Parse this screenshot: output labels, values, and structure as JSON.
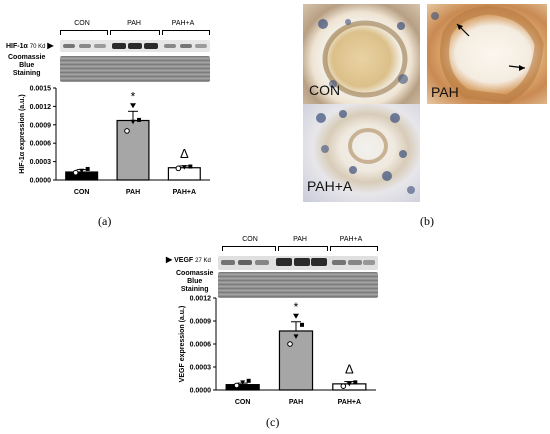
{
  "panel_a": {
    "letter": "(a)",
    "groups": [
      "CON",
      "PAH",
      "PAH+A"
    ],
    "blot_label_main": "HIF-1α",
    "blot_label_kd": "70 Kd",
    "stain_label": [
      "Coomassie",
      "Blue",
      "Staining"
    ],
    "significance": "*",
    "delta": "Δ"
  },
  "panel_b": {
    "letter": "(b)",
    "labels": [
      "CON",
      "PAH",
      "PAH+A"
    ]
  },
  "panel_c": {
    "letter": "(c)",
    "groups": [
      "CON",
      "PAH",
      "PAH+A"
    ],
    "blot_label_main": "VEGF",
    "blot_label_kd": "27 Kd",
    "stain_label": [
      "Coomassie",
      "Blue",
      "Staining"
    ],
    "significance": "*",
    "delta": "Δ"
  },
  "chart_data": [
    {
      "type": "bar",
      "categories": [
        "CON",
        "PAH",
        "PAH+A"
      ],
      "values": [
        0.00013,
        0.00097,
        0.0002
      ],
      "errors": [
        4e-05,
        0.00015,
        3e-05
      ],
      "points": [
        [
          0.00012,
          0.00015,
          0.00018
        ],
        [
          0.0008,
          0.00095,
          0.00098
        ],
        [
          0.00019,
          0.00021,
          0.00022
        ]
      ],
      "bar_colors": [
        "#000000",
        "#a6a6a6",
        "#ffffff"
      ],
      "ylabel": "HIF-1α expression (a.u.)",
      "ylim": [
        0,
        0.0015
      ],
      "yticks": [
        "0.0000",
        "0.0003",
        "0.0006",
        "0.0009",
        "0.0012",
        "0.0015"
      ]
    },
    {
      "type": "bar",
      "categories": [
        "CON",
        "PAH",
        "PAH+A"
      ],
      "values": [
        7e-05,
        0.00077,
        8e-05
      ],
      "errors": [
        2e-05,
        0.00012,
        3e-05
      ],
      "points": [
        [
          6e-05,
          0.0001,
          0.00012
        ],
        [
          0.0006,
          0.0007,
          0.00085
        ],
        [
          5e-05,
          8e-05,
          0.0001
        ]
      ],
      "bar_colors": [
        "#000000",
        "#a6a6a6",
        "#ffffff"
      ],
      "ylabel": "VEGF expression (a.u.)",
      "ylim": [
        0,
        0.0012
      ],
      "yticks": [
        "0.0000",
        "0.0003",
        "0.0006",
        "0.0009",
        "0.0012"
      ]
    }
  ]
}
